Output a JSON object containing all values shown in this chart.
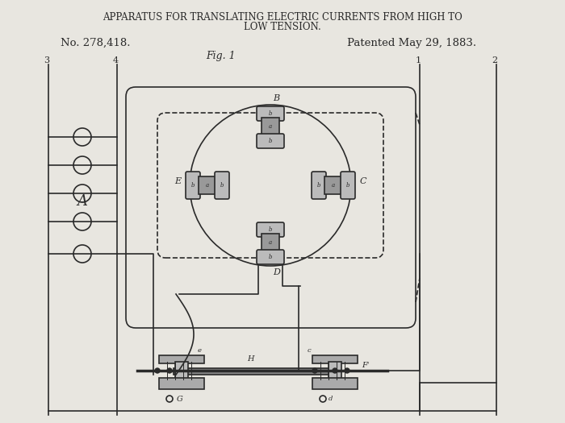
{
  "title_line1": "APPARATUS FOR TRANSLATING ELECTRIC CURRENTS FROM HIGH TO",
  "title_line2": "LOW TENSION.",
  "patent_no": "No. 278,418.",
  "patented": "Patented May 29, 1883.",
  "fig_label": "Fig. 1",
  "bg_color": "#e8e6e0",
  "line_color": "#2a2a2a",
  "label_color": "#1a1a1a"
}
